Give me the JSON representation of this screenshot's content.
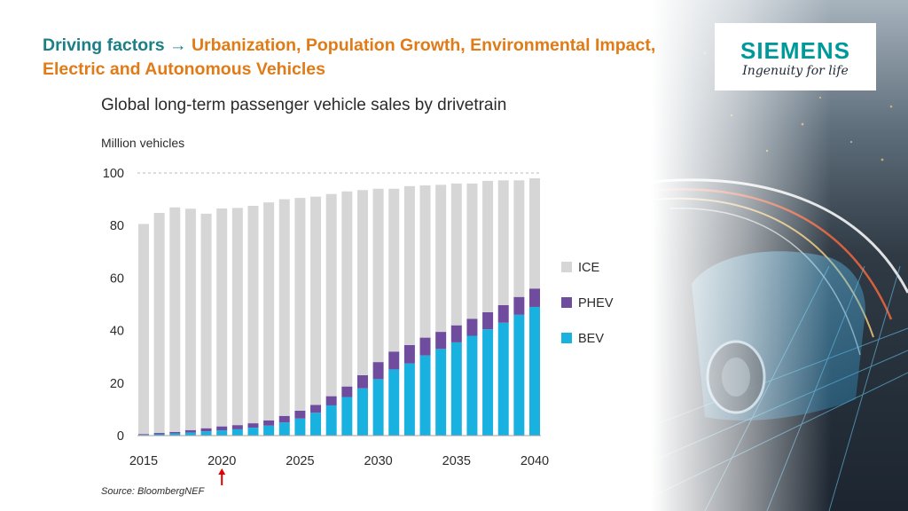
{
  "header": {
    "lead": "Driving factors",
    "arrow": "→",
    "rest": "Urbanization, Population Growth, Environmental Impact, Electric and Autonomous Vehicles"
  },
  "logo": {
    "brand": "SIEMENS",
    "tagline": "Ingenuity for life"
  },
  "colors": {
    "ice": "#d6d6d6",
    "phev": "#6f4c9e",
    "bev": "#19b1e0",
    "lead": "#1b7f86",
    "accent": "#e07b17",
    "marker": "#e00000"
  },
  "chart_data": {
    "type": "bar",
    "stacked": true,
    "title": "Global long-term passenger vehicle sales by drivetrain",
    "ylabel": "Million vehicles",
    "ylim": [
      0,
      100
    ],
    "yticks": [
      0,
      20,
      40,
      60,
      80,
      100
    ],
    "xticks": [
      2015,
      2020,
      2025,
      2030,
      2035,
      2040
    ],
    "marker_year": 2020,
    "grid": "dashed line at 100",
    "legend_position": "right",
    "legend_order": [
      "ICE",
      "PHEV",
      "BEV"
    ],
    "x": [
      2015,
      2016,
      2017,
      2018,
      2019,
      2020,
      2021,
      2022,
      2023,
      2024,
      2025,
      2026,
      2027,
      2028,
      2029,
      2030,
      2031,
      2032,
      2033,
      2034,
      2035,
      2036,
      2037,
      2038,
      2039,
      2040
    ],
    "series": [
      {
        "name": "BEV",
        "color": "#19b1e0",
        "values": [
          0.3,
          0.5,
          0.8,
          1.2,
          1.6,
          2.0,
          2.4,
          3.0,
          3.8,
          5.0,
          6.5,
          8.7,
          11.5,
          14.7,
          18.0,
          21.5,
          25.2,
          27.5,
          30.5,
          33.0,
          35.5,
          38.0,
          40.5,
          43.0,
          46.0,
          49.0
        ]
      },
      {
        "name": "PHEV",
        "color": "#6f4c9e",
        "values": [
          0.3,
          0.5,
          0.6,
          0.9,
          1.2,
          1.5,
          1.6,
          1.7,
          2.0,
          2.5,
          3.0,
          3.0,
          3.5,
          4.0,
          5.0,
          6.5,
          6.8,
          7.0,
          6.8,
          6.5,
          6.5,
          6.5,
          6.5,
          6.7,
          6.8,
          7.0
        ]
      },
      {
        "name": "ICE",
        "color": "#d6d6d6",
        "values": [
          80.0,
          83.8,
          85.5,
          84.3,
          81.7,
          83.0,
          82.7,
          82.8,
          83.0,
          82.5,
          81.0,
          79.3,
          77.0,
          74.3,
          70.5,
          66.0,
          62.0,
          60.5,
          58.0,
          56.0,
          54.0,
          51.5,
          50.0,
          47.5,
          44.4,
          42.0
        ]
      }
    ],
    "source": "Source: BloombergNEF"
  }
}
